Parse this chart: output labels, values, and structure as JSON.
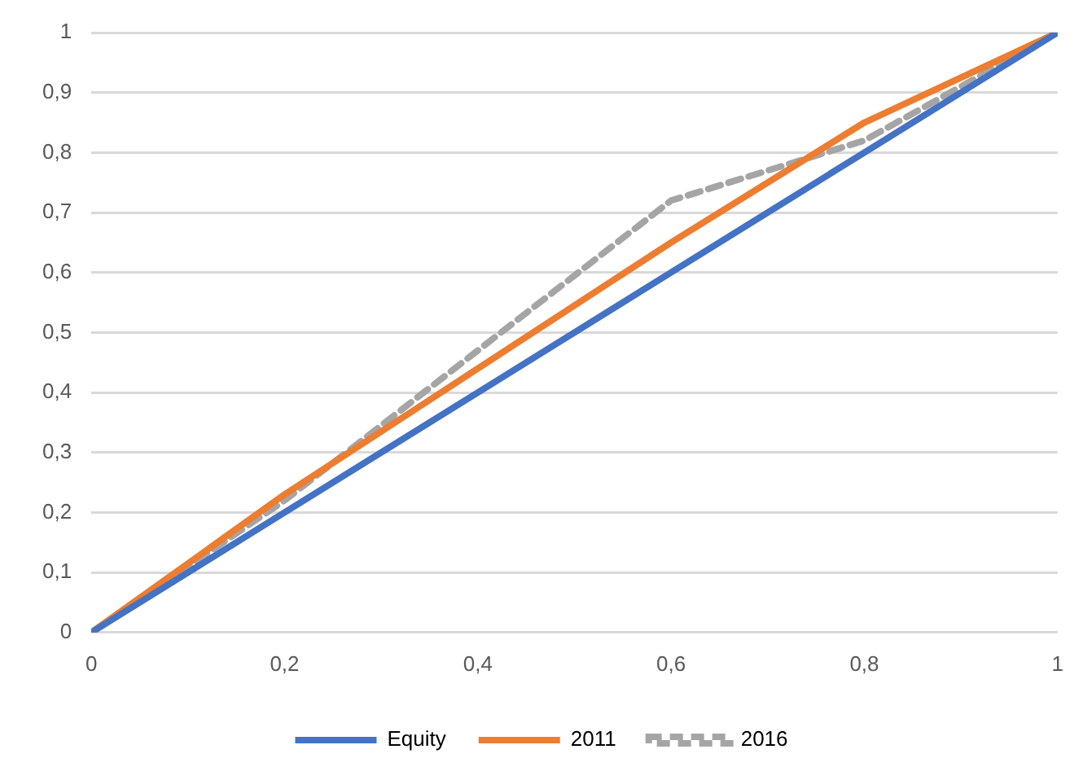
{
  "chart_data": {
    "type": "line",
    "x": [
      0,
      0.2,
      0.4,
      0.6,
      0.8,
      1
    ],
    "series": [
      {
        "name": "Equity",
        "color": "#4472c4",
        "values": [
          0,
          0.2,
          0.4,
          0.6,
          0.8,
          1
        ]
      },
      {
        "name": "2011",
        "color": "#ed7d31",
        "values": [
          0,
          0.23,
          0.44,
          0.65,
          0.85,
          1
        ]
      },
      {
        "name": "2016",
        "color": "#a5a5a5",
        "values": [
          0,
          0.22,
          0.47,
          0.72,
          0.82,
          1
        ],
        "line_style": "dashed"
      }
    ],
    "xlim": [
      0,
      1
    ],
    "xticks": [
      0,
      {
        "value": 0.2,
        "label": "0,2"
      },
      {
        "value": 0.4,
        "label": "0,4"
      },
      {
        "value": 0.6,
        "label": "0,6"
      },
      {
        "value": 0.8,
        "label": "0,8"
      },
      1
    ],
    "ylim": [
      0,
      1
    ],
    "yticks": [
      0,
      {
        "value": 0.1,
        "label": "0,1"
      },
      {
        "value": 0.2,
        "label": "0,2"
      },
      {
        "value": 0.3,
        "label": "0,3"
      },
      {
        "value": 0.4,
        "label": "0,4"
      },
      {
        "value": 0.5,
        "label": "0,5"
      },
      {
        "value": 0.6,
        "label": "0,6"
      },
      {
        "value": 0.7,
        "label": "0,7"
      },
      {
        "value": 0.8,
        "label": "0,8"
      },
      {
        "value": 0.9,
        "label": "0,9"
      },
      1
    ],
    "grid": "y",
    "legend": "bottom",
    "marker": "none",
    "line_style": "solid"
  }
}
